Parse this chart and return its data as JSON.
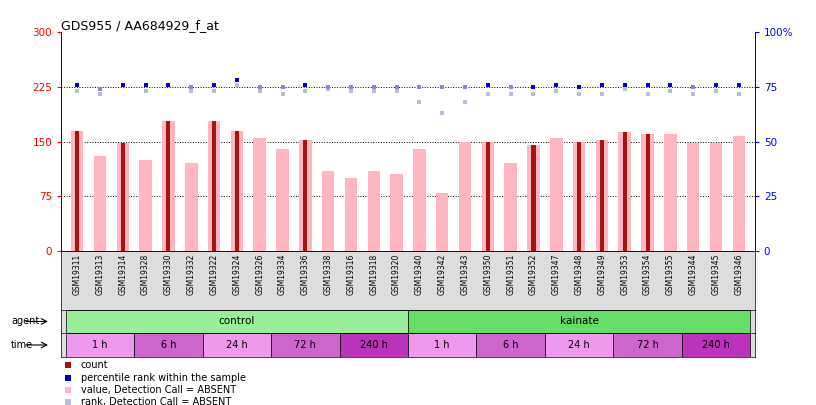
{
  "title": "GDS955 / AA684929_f_at",
  "samples": [
    "GSM19311",
    "GSM19313",
    "GSM19314",
    "GSM19328",
    "GSM19330",
    "GSM19332",
    "GSM19322",
    "GSM19324",
    "GSM19326",
    "GSM19334",
    "GSM19336",
    "GSM19338",
    "GSM19316",
    "GSM19318",
    "GSM19320",
    "GSM19340",
    "GSM19342",
    "GSM19343",
    "GSM19350",
    "GSM19351",
    "GSM19352",
    "GSM19347",
    "GSM19348",
    "GSM19349",
    "GSM19353",
    "GSM19354",
    "GSM19355",
    "GSM19344",
    "GSM19345",
    "GSM19346"
  ],
  "red_bars": [
    165,
    0,
    148,
    0,
    178,
    0,
    178,
    165,
    0,
    0,
    152,
    0,
    0,
    0,
    0,
    0,
    0,
    0,
    150,
    0,
    145,
    0,
    150,
    152,
    163,
    160,
    0,
    0,
    0,
    0
  ],
  "pink_bars": [
    165,
    130,
    148,
    125,
    178,
    120,
    178,
    165,
    155,
    140,
    152,
    110,
    100,
    110,
    105,
    140,
    80,
    150,
    150,
    120,
    145,
    155,
    150,
    152,
    163,
    160,
    160,
    148,
    148,
    158
  ],
  "blue_sq_val": [
    76,
    74,
    76,
    76,
    76,
    75,
    76,
    78,
    75,
    75,
    76,
    75,
    75,
    75,
    75,
    75,
    75,
    75,
    76,
    75,
    75,
    76,
    75,
    76,
    76,
    76,
    76,
    75,
    76,
    76
  ],
  "lav_sq_val": [
    73,
    72,
    76,
    73,
    76,
    73,
    73,
    76,
    73,
    72,
    73,
    74,
    73,
    73,
    73,
    68,
    63,
    68,
    72,
    72,
    72,
    73,
    72,
    72,
    74,
    72,
    73,
    72,
    73,
    72
  ],
  "blue_sq_absent": [
    false,
    true,
    false,
    false,
    false,
    true,
    false,
    false,
    true,
    true,
    false,
    true,
    true,
    true,
    true,
    true,
    true,
    true,
    false,
    true,
    false,
    false,
    false,
    false,
    false,
    false,
    false,
    true,
    false,
    false
  ],
  "lav_sq_absent": [
    true,
    true,
    false,
    true,
    false,
    true,
    true,
    false,
    true,
    true,
    true,
    true,
    true,
    true,
    true,
    true,
    true,
    true,
    true,
    true,
    true,
    true,
    true,
    true,
    false,
    true,
    true,
    true,
    true,
    true
  ],
  "agent_groups": [
    {
      "label": "control",
      "start": 0,
      "end": 15,
      "color": "#99EE99"
    },
    {
      "label": "kainate",
      "start": 15,
      "end": 30,
      "color": "#66DD66"
    }
  ],
  "time_groups": [
    {
      "label": "1 h",
      "start": 0,
      "end": 3,
      "color": "#EE99EE"
    },
    {
      "label": "6 h",
      "start": 3,
      "end": 6,
      "color": "#CC66CC"
    },
    {
      "label": "24 h",
      "start": 6,
      "end": 9,
      "color": "#EE99EE"
    },
    {
      "label": "72 h",
      "start": 9,
      "end": 12,
      "color": "#CC66CC"
    },
    {
      "label": "240 h",
      "start": 12,
      "end": 15,
      "color": "#BB33BB"
    },
    {
      "label": "1 h",
      "start": 15,
      "end": 18,
      "color": "#EE99EE"
    },
    {
      "label": "6 h",
      "start": 18,
      "end": 21,
      "color": "#CC66CC"
    },
    {
      "label": "24 h",
      "start": 21,
      "end": 24,
      "color": "#EE99EE"
    },
    {
      "label": "72 h",
      "start": 24,
      "end": 27,
      "color": "#CC66CC"
    },
    {
      "label": "240 h",
      "start": 27,
      "end": 30,
      "color": "#BB33BB"
    }
  ],
  "ylim_left": [
    0,
    300
  ],
  "ylim_right": [
    0,
    100
  ],
  "yticks_left": [
    0,
    75,
    150,
    225,
    300
  ],
  "yticks_right": [
    0,
    25,
    50,
    75,
    100
  ],
  "pink_color": "#FFB6C1",
  "red_color": "#AA1111",
  "blue_color": "#0000CC",
  "blue_abs_color": "#8888CC",
  "lavender_color": "#BBBBDD",
  "bg_color": "#FFFFFF",
  "plot_bg": "#FFFFFF",
  "gray_bg": "#DDDDDD"
}
